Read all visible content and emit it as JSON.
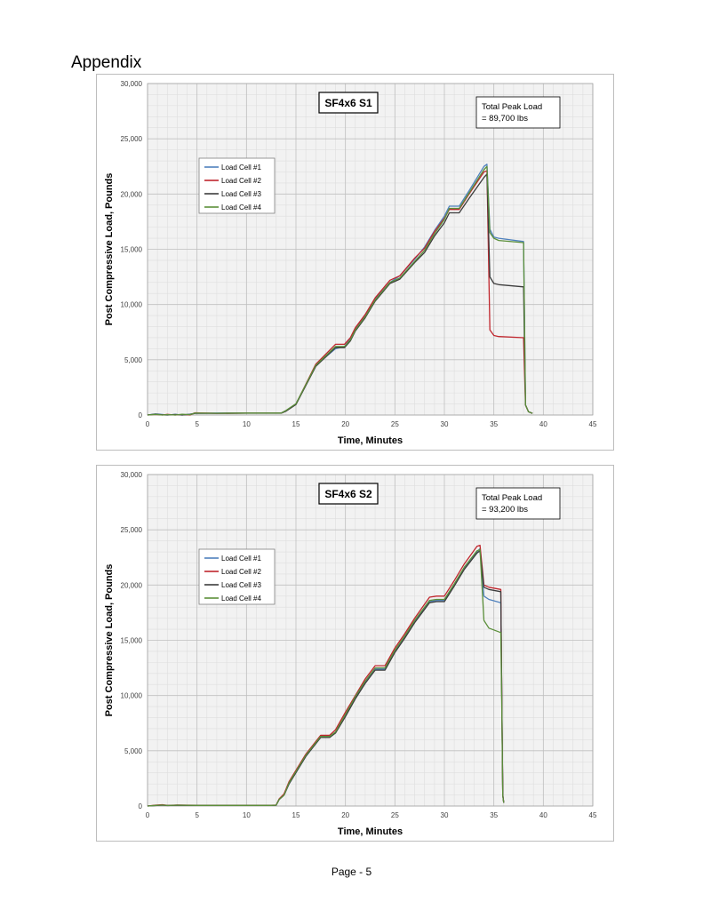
{
  "page": {
    "heading": "Appendix",
    "footer": "Page - 5"
  },
  "colors": {
    "load_cell_1": "#4f81bd",
    "load_cell_2": "#c0262d",
    "load_cell_3": "#3c3c3c",
    "load_cell_4": "#5b8f3a",
    "grid_major": "#bfbfbf",
    "grid_minor": "#dedede",
    "plot_background": "#f2f2f2"
  },
  "chart_data": [
    {
      "type": "line",
      "title": "SF4x6 S1",
      "annotation": [
        "Total Peak Load",
        "= 89,700 lbs"
      ],
      "xlabel": "Time, Minutes",
      "ylabel": "Post Compressive Load, Pounds",
      "xlim": [
        0,
        45
      ],
      "ylim": [
        0,
        30000
      ],
      "x_ticks": [
        "0",
        "5",
        "10",
        "15",
        "20",
        "25",
        "30",
        "35",
        "40",
        "45"
      ],
      "y_ticks": [
        "0",
        "5,000",
        "10,000",
        "15,000",
        "20,000",
        "25,000",
        "30,000"
      ],
      "grid": true,
      "legend_position": "upper-left",
      "series": [
        {
          "name": "Load Cell #1",
          "x": [
            0,
            0.8,
            1.5,
            2,
            2.8,
            3.5,
            4.3,
            4.8,
            7,
            10,
            13.5,
            14,
            14.5,
            15,
            17,
            19,
            19.9,
            20.5,
            21,
            22,
            23,
            24.5,
            25.5,
            27,
            28,
            29,
            30,
            30.5,
            31.5,
            32.5,
            34,
            34.3,
            34.6,
            35,
            35.5,
            38,
            38.2,
            38.5,
            38.9
          ],
          "y": [
            0,
            100,
            50,
            0,
            60,
            0,
            80,
            150,
            180,
            180,
            180,
            400,
            700,
            1000,
            4500,
            6000,
            6200,
            6900,
            7800,
            9000,
            10500,
            12000,
            12600,
            14100,
            15200,
            16700,
            18000,
            18900,
            18900,
            20300,
            22500,
            22700,
            16800,
            16100,
            16000,
            15700,
            900,
            300,
            150
          ]
        },
        {
          "name": "Load Cell #2",
          "x": [
            0,
            0.8,
            1.5,
            2,
            2.8,
            3.5,
            4.3,
            4.8,
            7,
            10,
            13.5,
            14,
            14.5,
            15,
            17,
            19,
            19.9,
            20.5,
            21,
            22,
            23,
            24.5,
            25.5,
            27,
            28,
            29,
            30,
            30.5,
            31.5,
            32.5,
            34,
            34.3,
            34.6,
            35,
            35.5,
            38,
            38.2,
            38.5,
            38.9
          ],
          "y": [
            0,
            50,
            0,
            60,
            0,
            40,
            0,
            200,
            150,
            170,
            170,
            380,
            680,
            980,
            4600,
            6400,
            6400,
            7000,
            7900,
            9100,
            10600,
            12200,
            12600,
            14200,
            15100,
            16600,
            17800,
            18600,
            18600,
            20000,
            22000,
            22100,
            7700,
            7200,
            7100,
            7000,
            900,
            300,
            150
          ]
        },
        {
          "name": "Load Cell #3",
          "x": [
            0,
            0.8,
            1.5,
            2,
            2.8,
            3.5,
            4.3,
            4.8,
            7,
            10,
            13.5,
            14,
            14.5,
            15,
            17,
            19,
            19.9,
            20.5,
            21,
            22,
            23,
            24.5,
            25.5,
            27,
            28,
            29,
            30,
            30.5,
            31.5,
            32.5,
            34,
            34.3,
            34.6,
            35,
            35.5,
            38,
            38.2,
            38.5,
            38.9
          ],
          "y": [
            0,
            80,
            20,
            0,
            50,
            0,
            60,
            150,
            150,
            160,
            160,
            350,
            650,
            950,
            4400,
            6100,
            6100,
            6700,
            7600,
            8800,
            10300,
            11900,
            12300,
            13800,
            14700,
            16200,
            17400,
            18300,
            18300,
            19600,
            21500,
            21800,
            12500,
            11900,
            11800,
            11600,
            900,
            300,
            150
          ]
        },
        {
          "name": "Load Cell #4",
          "x": [
            0,
            0.8,
            1.5,
            2,
            2.8,
            3.5,
            4.3,
            4.8,
            7,
            10,
            13.5,
            14,
            14.5,
            15,
            17,
            19,
            19.9,
            20.5,
            21,
            22,
            23,
            24.5,
            25.5,
            27,
            28,
            29,
            30,
            30.5,
            31.5,
            32.5,
            34,
            34.3,
            34.6,
            35,
            35.5,
            38,
            38.2,
            38.5,
            38.9
          ],
          "y": [
            0,
            60,
            0,
            40,
            0,
            70,
            30,
            180,
            160,
            180,
            180,
            420,
            720,
            1020,
            4500,
            6200,
            6200,
            6800,
            7700,
            8900,
            10400,
            12000,
            12400,
            13900,
            14900,
            16400,
            17700,
            18700,
            18700,
            20100,
            22200,
            22500,
            16500,
            16000,
            15800,
            15600,
            900,
            300,
            150
          ]
        }
      ]
    },
    {
      "type": "line",
      "title": "SF4x6 S2",
      "annotation": [
        "Total Peak Load",
        "= 93,200 lbs"
      ],
      "xlabel": "Time, Minutes",
      "ylabel": "Post Compressive Load, Pounds",
      "xlim": [
        0,
        45
      ],
      "ylim": [
        0,
        30000
      ],
      "x_ticks": [
        "0",
        "5",
        "10",
        "15",
        "20",
        "25",
        "30",
        "35",
        "40",
        "45"
      ],
      "y_ticks": [
        "0",
        "5,000",
        "10,000",
        "15,000",
        "20,000",
        "25,000",
        "30,000"
      ],
      "grid": true,
      "legend_position": "upper-left",
      "series": [
        {
          "name": "Load Cell #1",
          "x": [
            0,
            0.8,
            1.5,
            2,
            3,
            5,
            8,
            10,
            12.5,
            13,
            13.3,
            13.8,
            14.3,
            16,
            17.5,
            18.4,
            19,
            20,
            21,
            22,
            23,
            24,
            25,
            26,
            27,
            28.5,
            29.2,
            30,
            31,
            32,
            33.3,
            33.6,
            34,
            34.5,
            35.7,
            35.8,
            35.9,
            36
          ],
          "y": [
            0,
            50,
            100,
            50,
            80,
            60,
            60,
            60,
            60,
            80,
            600,
            1000,
            2000,
            4500,
            6200,
            6200,
            6700,
            8200,
            9800,
            11200,
            12400,
            12400,
            14000,
            15300,
            16700,
            18500,
            18600,
            18600,
            20000,
            21500,
            23000,
            23300,
            19000,
            18700,
            18400,
            10000,
            1000,
            300
          ]
        },
        {
          "name": "Load Cell #2",
          "x": [
            0,
            0.8,
            1.5,
            2,
            3,
            5,
            8,
            10,
            12.5,
            13,
            13.3,
            13.8,
            14.3,
            16,
            17.5,
            18.4,
            19,
            20,
            21,
            22,
            23,
            24,
            25,
            26,
            27,
            28.5,
            29.2,
            30,
            31,
            32,
            33.3,
            33.6,
            34,
            34.5,
            35.7,
            35.8,
            35.9,
            36
          ],
          "y": [
            0,
            80,
            120,
            60,
            90,
            70,
            70,
            70,
            70,
            90,
            650,
            1100,
            2200,
            4700,
            6400,
            6400,
            6900,
            8500,
            10000,
            11500,
            12700,
            12700,
            14300,
            15600,
            17000,
            18900,
            19000,
            19000,
            20400,
            21900,
            23500,
            23600,
            20000,
            19800,
            19600,
            10000,
            1000,
            300
          ]
        },
        {
          "name": "Load Cell #3",
          "x": [
            0,
            0.8,
            1.5,
            2,
            3,
            5,
            8,
            10,
            12.5,
            13,
            13.3,
            13.8,
            14.3,
            16,
            17.5,
            18.4,
            19,
            20,
            21,
            22,
            23,
            24,
            25,
            26,
            27,
            28.5,
            29.2,
            30,
            31,
            32,
            33.3,
            33.6,
            34,
            34.5,
            35.7,
            35.8,
            35.9,
            36
          ],
          "y": [
            0,
            40,
            80,
            40,
            70,
            50,
            50,
            50,
            50,
            70,
            580,
            980,
            2000,
            4500,
            6200,
            6200,
            6600,
            8100,
            9700,
            11100,
            12300,
            12300,
            13900,
            15200,
            16600,
            18400,
            18500,
            18500,
            19900,
            21400,
            22900,
            23100,
            19800,
            19600,
            19400,
            10000,
            1000,
            300
          ]
        },
        {
          "name": "Load Cell #4",
          "x": [
            0,
            0.8,
            1.5,
            2,
            3,
            5,
            8,
            10,
            12.5,
            13,
            13.3,
            13.8,
            14.3,
            16,
            17.5,
            18.4,
            19,
            20,
            21,
            22,
            23,
            24,
            25,
            26,
            27,
            28.5,
            29.2,
            30,
            31,
            32,
            33.3,
            33.6,
            34,
            34.5,
            35.7,
            35.8,
            35.9,
            36
          ],
          "y": [
            0,
            60,
            90,
            50,
            80,
            60,
            60,
            60,
            60,
            80,
            600,
            1000,
            2100,
            4600,
            6300,
            6300,
            6700,
            8300,
            9900,
            11300,
            12500,
            12500,
            14100,
            15400,
            16800,
            18600,
            18700,
            18700,
            20100,
            21600,
            23100,
            23200,
            16800,
            16100,
            15700,
            9000,
            900,
            300
          ]
        }
      ]
    }
  ]
}
